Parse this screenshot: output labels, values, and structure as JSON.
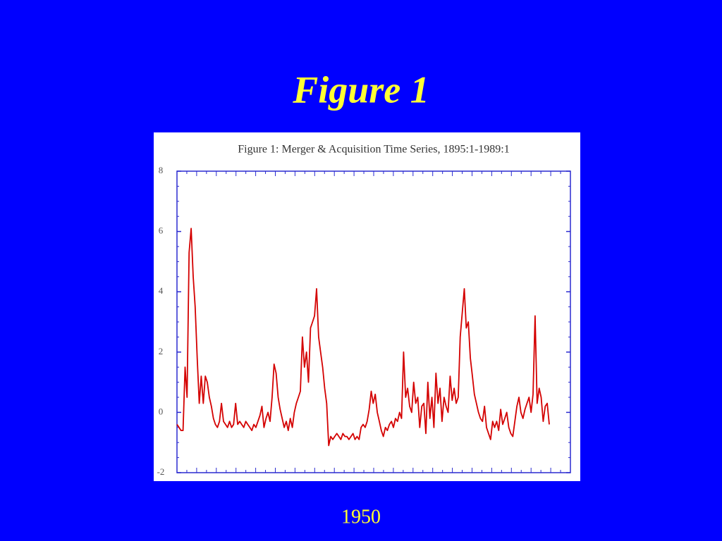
{
  "slide_title": "Figure 1",
  "footer": "1950",
  "chart_data": {
    "type": "line",
    "title": "Figure 1:  Merger & Acquisition Time Series, 1895:1-1989:1",
    "color": "#d40000",
    "ylim": [
      -2,
      8
    ],
    "yticks": [
      -2,
      0,
      2,
      4,
      6,
      8
    ],
    "values": [
      -0.4,
      -0.5,
      -0.6,
      -0.6,
      1.5,
      0.5,
      5.3,
      6.1,
      4.5,
      3.5,
      1.8,
      0.3,
      1.2,
      0.3,
      1.2,
      1.0,
      0.5,
      0.2,
      -0.2,
      -0.4,
      -0.5,
      -0.3,
      0.3,
      -0.3,
      -0.4,
      -0.5,
      -0.3,
      -0.5,
      -0.4,
      0.3,
      -0.4,
      -0.3,
      -0.4,
      -0.5,
      -0.3,
      -0.4,
      -0.5,
      -0.6,
      -0.4,
      -0.5,
      -0.3,
      -0.1,
      0.2,
      -0.5,
      -0.2,
      0.0,
      -0.3,
      0.5,
      1.6,
      1.3,
      0.5,
      0.1,
      -0.2,
      -0.5,
      -0.3,
      -0.6,
      -0.2,
      -0.5,
      0.0,
      0.3,
      0.5,
      0.7,
      2.5,
      1.5,
      2.0,
      1.0,
      2.8,
      3.0,
      3.2,
      4.1,
      2.5,
      2.0,
      1.5,
      0.8,
      0.3,
      -1.1,
      -0.8,
      -0.9,
      -0.8,
      -0.7,
      -0.8,
      -0.9,
      -0.7,
      -0.8,
      -0.8,
      -0.9,
      -0.8,
      -0.7,
      -0.9,
      -0.8,
      -0.9,
      -0.5,
      -0.4,
      -0.5,
      -0.3,
      0.1,
      0.7,
      0.3,
      0.6,
      0.0,
      -0.3,
      -0.6,
      -0.8,
      -0.5,
      -0.6,
      -0.4,
      -0.3,
      -0.5,
      -0.2,
      -0.3,
      0.0,
      -0.2,
      2.0,
      0.5,
      0.8,
      0.2,
      0.0,
      1.0,
      0.3,
      0.5,
      -0.5,
      0.2,
      0.3,
      -0.7,
      1.0,
      -0.2,
      0.5,
      -0.5,
      1.3,
      0.3,
      0.8,
      -0.3,
      0.5,
      0.2,
      0.0,
      1.2,
      0.4,
      0.8,
      0.3,
      0.5,
      2.5,
      3.3,
      4.1,
      2.8,
      3.0,
      1.8,
      1.2,
      0.6,
      0.3,
      0.0,
      -0.2,
      -0.3,
      0.2,
      -0.5,
      -0.7,
      -0.9,
      -0.3,
      -0.5,
      -0.3,
      -0.6,
      0.1,
      -0.4,
      -0.2,
      0.0,
      -0.5,
      -0.7,
      -0.8,
      -0.3,
      0.2,
      0.5,
      0.0,
      -0.2,
      0.1,
      0.3,
      0.5,
      0.0,
      0.6,
      3.2,
      0.3,
      0.8,
      0.5,
      -0.3,
      0.2,
      0.3,
      -0.4
    ]
  }
}
